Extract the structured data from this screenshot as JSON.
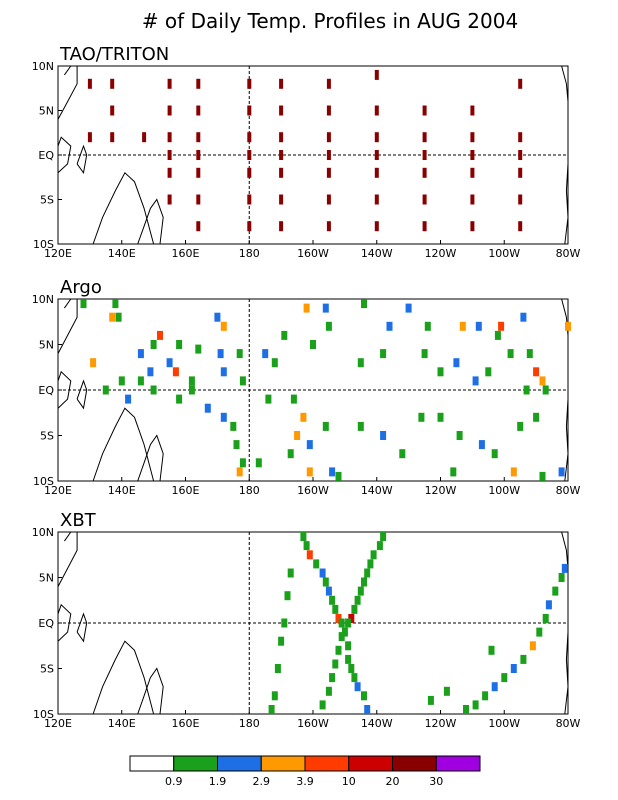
{
  "title": "# of Daily Temp. Profiles in AUG 2004",
  "colorbar": {
    "colors": [
      "#ffffff",
      "#1aa01a",
      "#1e6fe6",
      "#ff9900",
      "#ff3c00",
      "#cc0000",
      "#8a0000",
      "#a000e0"
    ],
    "labels": [
      "0.9",
      "1.9",
      "2.9",
      "3.9",
      "10",
      "20",
      "30"
    ]
  },
  "chart_data": [
    {
      "type": "scatter",
      "title": "TAO/TRITON",
      "x_ticks": [
        "120E",
        "140E",
        "160E",
        "180",
        "160W",
        "140W",
        "120W",
        "100W",
        "80W"
      ],
      "y_ticks": [
        "10N",
        "5N",
        "EQ",
        "5S",
        "10S"
      ],
      "xlim": [
        120,
        280
      ],
      "ylim": [
        -10,
        10
      ],
      "grid": "dashed lines at 180 and EQ",
      "points": [
        {
          "lon": 130,
          "lat": 8,
          "c": 6
        },
        {
          "lon": 137,
          "lat": 8,
          "c": 6
        },
        {
          "lon": 155,
          "lat": 8,
          "c": 6
        },
        {
          "lon": 164,
          "lat": 8,
          "c": 6
        },
        {
          "lon": 180,
          "lat": 8,
          "c": 6
        },
        {
          "lon": 190,
          "lat": 8,
          "c": 6
        },
        {
          "lon": 205,
          "lat": 8,
          "c": 6
        },
        {
          "lon": 220,
          "lat": 9,
          "c": 6
        },
        {
          "lon": 265,
          "lat": 8,
          "c": 6
        },
        {
          "lon": 137,
          "lat": 5,
          "c": 6
        },
        {
          "lon": 155,
          "lat": 5,
          "c": 6
        },
        {
          "lon": 164,
          "lat": 5,
          "c": 6
        },
        {
          "lon": 180,
          "lat": 5,
          "c": 6
        },
        {
          "lon": 190,
          "lat": 5,
          "c": 6
        },
        {
          "lon": 205,
          "lat": 5,
          "c": 6
        },
        {
          "lon": 220,
          "lat": 5,
          "c": 6
        },
        {
          "lon": 235,
          "lat": 5,
          "c": 6
        },
        {
          "lon": 250,
          "lat": 5,
          "c": 6
        },
        {
          "lon": 130,
          "lat": 2,
          "c": 6
        },
        {
          "lon": 137,
          "lat": 2,
          "c": 6
        },
        {
          "lon": 147,
          "lat": 2,
          "c": 6
        },
        {
          "lon": 155,
          "lat": 2,
          "c": 6
        },
        {
          "lon": 164,
          "lat": 2,
          "c": 6
        },
        {
          "lon": 180,
          "lat": 2,
          "c": 6
        },
        {
          "lon": 190,
          "lat": 2,
          "c": 6
        },
        {
          "lon": 205,
          "lat": 2,
          "c": 6
        },
        {
          "lon": 220,
          "lat": 2,
          "c": 6
        },
        {
          "lon": 235,
          "lat": 2,
          "c": 6
        },
        {
          "lon": 250,
          "lat": 2,
          "c": 6
        },
        {
          "lon": 265,
          "lat": 2,
          "c": 6
        },
        {
          "lon": 155,
          "lat": 0,
          "c": 6
        },
        {
          "lon": 164,
          "lat": 0,
          "c": 6
        },
        {
          "lon": 180,
          "lat": 0,
          "c": 6
        },
        {
          "lon": 190,
          "lat": 0,
          "c": 6
        },
        {
          "lon": 205,
          "lat": 0,
          "c": 6
        },
        {
          "lon": 220,
          "lat": 0,
          "c": 6
        },
        {
          "lon": 235,
          "lat": 0,
          "c": 6
        },
        {
          "lon": 250,
          "lat": 0,
          "c": 6
        },
        {
          "lon": 265,
          "lat": 0,
          "c": 6
        },
        {
          "lon": 155,
          "lat": -2,
          "c": 6
        },
        {
          "lon": 164,
          "lat": -2,
          "c": 6
        },
        {
          "lon": 180,
          "lat": -2,
          "c": 6
        },
        {
          "lon": 190,
          "lat": -2,
          "c": 6
        },
        {
          "lon": 205,
          "lat": -2,
          "c": 6
        },
        {
          "lon": 220,
          "lat": -2,
          "c": 6
        },
        {
          "lon": 235,
          "lat": -2,
          "c": 6
        },
        {
          "lon": 250,
          "lat": -2,
          "c": 6
        },
        {
          "lon": 265,
          "lat": -2,
          "c": 6
        },
        {
          "lon": 155,
          "lat": -5,
          "c": 6
        },
        {
          "lon": 164,
          "lat": -5,
          "c": 6
        },
        {
          "lon": 180,
          "lat": -5,
          "c": 6
        },
        {
          "lon": 190,
          "lat": -5,
          "c": 6
        },
        {
          "lon": 205,
          "lat": -5,
          "c": 6
        },
        {
          "lon": 220,
          "lat": -5,
          "c": 6
        },
        {
          "lon": 235,
          "lat": -5,
          "c": 6
        },
        {
          "lon": 250,
          "lat": -5,
          "c": 6
        },
        {
          "lon": 265,
          "lat": -5,
          "c": 6
        },
        {
          "lon": 164,
          "lat": -8,
          "c": 6
        },
        {
          "lon": 180,
          "lat": -8,
          "c": 6
        },
        {
          "lon": 190,
          "lat": -8,
          "c": 6
        },
        {
          "lon": 205,
          "lat": -8,
          "c": 6
        },
        {
          "lon": 220,
          "lat": -8,
          "c": 6
        },
        {
          "lon": 235,
          "lat": -8,
          "c": 6
        },
        {
          "lon": 250,
          "lat": -8,
          "c": 6
        },
        {
          "lon": 265,
          "lat": -8,
          "c": 6
        }
      ]
    },
    {
      "type": "scatter",
      "title": "Argo",
      "x_ticks": [
        "120E",
        "140E",
        "160E",
        "180",
        "160W",
        "140W",
        "120W",
        "100W",
        "80W"
      ],
      "y_ticks": [
        "10N",
        "5N",
        "EQ",
        "5S",
        "10S"
      ],
      "xlim": [
        120,
        280
      ],
      "ylim": [
        -10,
        10
      ],
      "grid": "dashed lines at 180 and EQ",
      "points": [
        {
          "lon": 128,
          "lat": 9.5,
          "c": 1
        },
        {
          "lon": 138,
          "lat": 9.5,
          "c": 1
        },
        {
          "lon": 137,
          "lat": 8,
          "c": 3
        },
        {
          "lon": 139,
          "lat": 8,
          "c": 1
        },
        {
          "lon": 152,
          "lat": 6,
          "c": 4
        },
        {
          "lon": 150,
          "lat": 5,
          "c": 1
        },
        {
          "lon": 146,
          "lat": 4,
          "c": 2
        },
        {
          "lon": 158,
          "lat": 5,
          "c": 1
        },
        {
          "lon": 164,
          "lat": 4.5,
          "c": 1
        },
        {
          "lon": 170,
          "lat": 8,
          "c": 2
        },
        {
          "lon": 172,
          "lat": 7,
          "c": 3
        },
        {
          "lon": 171,
          "lat": 4,
          "c": 2
        },
        {
          "lon": 177,
          "lat": 4,
          "c": 1
        },
        {
          "lon": 185,
          "lat": 4,
          "c": 2
        },
        {
          "lon": 191,
          "lat": 6,
          "c": 1
        },
        {
          "lon": 198,
          "lat": 9,
          "c": 3
        },
        {
          "lon": 204,
          "lat": 9,
          "c": 2
        },
        {
          "lon": 216,
          "lat": 9.5,
          "c": 1
        },
        {
          "lon": 230,
          "lat": 9,
          "c": 2
        },
        {
          "lon": 205,
          "lat": 7,
          "c": 1
        },
        {
          "lon": 224,
          "lat": 7,
          "c": 2
        },
        {
          "lon": 236,
          "lat": 7,
          "c": 1
        },
        {
          "lon": 247,
          "lat": 7,
          "c": 3
        },
        {
          "lon": 252,
          "lat": 7,
          "c": 2
        },
        {
          "lon": 259,
          "lat": 7,
          "c": 4
        },
        {
          "lon": 266,
          "lat": 8,
          "c": 2
        },
        {
          "lon": 258,
          "lat": 6,
          "c": 1
        },
        {
          "lon": 280,
          "lat": 7,
          "c": 3
        },
        {
          "lon": 131,
          "lat": 3,
          "c": 3
        },
        {
          "lon": 155,
          "lat": 3,
          "c": 2
        },
        {
          "lon": 157,
          "lat": 2,
          "c": 4
        },
        {
          "lon": 162,
          "lat": 1,
          "c": 1
        },
        {
          "lon": 149,
          "lat": 2,
          "c": 2
        },
        {
          "lon": 146,
          "lat": 1,
          "c": 1
        },
        {
          "lon": 140,
          "lat": 1,
          "c": 1
        },
        {
          "lon": 172,
          "lat": 2,
          "c": 2
        },
        {
          "lon": 178,
          "lat": 1,
          "c": 1
        },
        {
          "lon": 188,
          "lat": 3,
          "c": 1
        },
        {
          "lon": 200,
          "lat": 5,
          "c": 1
        },
        {
          "lon": 215,
          "lat": 3,
          "c": 1
        },
        {
          "lon": 222,
          "lat": 4,
          "c": 1
        },
        {
          "lon": 235,
          "lat": 4,
          "c": 1
        },
        {
          "lon": 240,
          "lat": 2,
          "c": 1
        },
        {
          "lon": 245,
          "lat": 3,
          "c": 2
        },
        {
          "lon": 251,
          "lat": 1,
          "c": 2
        },
        {
          "lon": 255,
          "lat": 2,
          "c": 1
        },
        {
          "lon": 262,
          "lat": 4,
          "c": 1
        },
        {
          "lon": 268,
          "lat": 4,
          "c": 1
        },
        {
          "lon": 270,
          "lat": 2,
          "c": 4
        },
        {
          "lon": 273,
          "lat": 0,
          "c": 1
        },
        {
          "lon": 272,
          "lat": 1,
          "c": 3
        },
        {
          "lon": 267,
          "lat": 0,
          "c": 1
        },
        {
          "lon": 135,
          "lat": 0,
          "c": 1
        },
        {
          "lon": 142,
          "lat": -1,
          "c": 2
        },
        {
          "lon": 150,
          "lat": 0,
          "c": 1
        },
        {
          "lon": 158,
          "lat": -1,
          "c": 1
        },
        {
          "lon": 162,
          "lat": 0,
          "c": 1
        },
        {
          "lon": 167,
          "lat": -2,
          "c": 2
        },
        {
          "lon": 172,
          "lat": -3,
          "c": 2
        },
        {
          "lon": 175,
          "lat": -4,
          "c": 1
        },
        {
          "lon": 186,
          "lat": -1,
          "c": 1
        },
        {
          "lon": 194,
          "lat": -1,
          "c": 1
        },
        {
          "lon": 197,
          "lat": -3,
          "c": 3
        },
        {
          "lon": 195,
          "lat": -5,
          "c": 3
        },
        {
          "lon": 199,
          "lat": -6,
          "c": 2
        },
        {
          "lon": 204,
          "lat": -4,
          "c": 1
        },
        {
          "lon": 215,
          "lat": -4,
          "c": 1
        },
        {
          "lon": 222,
          "lat": -5,
          "c": 2
        },
        {
          "lon": 234,
          "lat": -3,
          "c": 1
        },
        {
          "lon": 240,
          "lat": -3,
          "c": 1
        },
        {
          "lon": 246,
          "lat": -5,
          "c": 1
        },
        {
          "lon": 253,
          "lat": -6,
          "c": 2
        },
        {
          "lon": 257,
          "lat": -7,
          "c": 1
        },
        {
          "lon": 265,
          "lat": -4,
          "c": 1
        },
        {
          "lon": 270,
          "lat": -3,
          "c": 1
        },
        {
          "lon": 176,
          "lat": -6,
          "c": 1
        },
        {
          "lon": 178,
          "lat": -8,
          "c": 1
        },
        {
          "lon": 177,
          "lat": -9,
          "c": 3
        },
        {
          "lon": 183,
          "lat": -8,
          "c": 1
        },
        {
          "lon": 193,
          "lat": -7,
          "c": 1
        },
        {
          "lon": 199,
          "lat": -9,
          "c": 3
        },
        {
          "lon": 206,
          "lat": -9,
          "c": 2
        },
        {
          "lon": 208,
          "lat": -9.5,
          "c": 1
        },
        {
          "lon": 228,
          "lat": -7,
          "c": 1
        },
        {
          "lon": 244,
          "lat": -9,
          "c": 1
        },
        {
          "lon": 263,
          "lat": -9,
          "c": 3
        },
        {
          "lon": 272,
          "lat": -9.5,
          "c": 1
        },
        {
          "lon": 278,
          "lat": -9,
          "c": 2
        }
      ]
    },
    {
      "type": "scatter",
      "title": "XBT",
      "x_ticks": [
        "120E",
        "140E",
        "160E",
        "180",
        "160W",
        "140W",
        "120W",
        "100W",
        "80W"
      ],
      "y_ticks": [
        "10N",
        "5N",
        "EQ",
        "5S",
        "10S"
      ],
      "xlim": [
        120,
        280
      ],
      "ylim": [
        -10,
        10
      ],
      "grid": "dashed lines at 180 and EQ",
      "points": [
        {
          "lon": 197,
          "lat": 9.5,
          "c": 1
        },
        {
          "lon": 198,
          "lat": 8.5,
          "c": 1
        },
        {
          "lon": 199,
          "lat": 7.5,
          "c": 4
        },
        {
          "lon": 201,
          "lat": 6.5,
          "c": 1
        },
        {
          "lon": 203,
          "lat": 5.5,
          "c": 2
        },
        {
          "lon": 204,
          "lat": 4.5,
          "c": 1
        },
        {
          "lon": 205,
          "lat": 3.5,
          "c": 2
        },
        {
          "lon": 206,
          "lat": 2.5,
          "c": 1
        },
        {
          "lon": 207,
          "lat": 1.5,
          "c": 1
        },
        {
          "lon": 208,
          "lat": 0.5,
          "c": 4
        },
        {
          "lon": 209,
          "lat": 0,
          "c": 1
        },
        {
          "lon": 210,
          "lat": -1,
          "c": 1
        },
        {
          "lon": 211,
          "lat": -2.5,
          "c": 1
        },
        {
          "lon": 211,
          "lat": -4,
          "c": 1
        },
        {
          "lon": 212,
          "lat": -5,
          "c": 1
        },
        {
          "lon": 213,
          "lat": -6,
          "c": 1
        },
        {
          "lon": 214,
          "lat": -7,
          "c": 2
        },
        {
          "lon": 216,
          "lat": -8,
          "c": 1
        },
        {
          "lon": 217,
          "lat": -9.5,
          "c": 2
        },
        {
          "lon": 222,
          "lat": 9.5,
          "c": 1
        },
        {
          "lon": 221,
          "lat": 8.5,
          "c": 1
        },
        {
          "lon": 219,
          "lat": 7.5,
          "c": 1
        },
        {
          "lon": 218,
          "lat": 6.5,
          "c": 1
        },
        {
          "lon": 217,
          "lat": 5.5,
          "c": 1
        },
        {
          "lon": 216,
          "lat": 4.5,
          "c": 1
        },
        {
          "lon": 215,
          "lat": 3.5,
          "c": 1
        },
        {
          "lon": 214,
          "lat": 2.5,
          "c": 1
        },
        {
          "lon": 213,
          "lat": 1.5,
          "c": 1
        },
        {
          "lon": 212,
          "lat": 0.5,
          "c": 5
        },
        {
          "lon": 211,
          "lat": 0,
          "c": 1
        },
        {
          "lon": 209,
          "lat": -1.5,
          "c": 1
        },
        {
          "lon": 208,
          "lat": -3,
          "c": 1
        },
        {
          "lon": 207,
          "lat": -4.5,
          "c": 1
        },
        {
          "lon": 206,
          "lat": -6,
          "c": 1
        },
        {
          "lon": 205,
          "lat": -7.5,
          "c": 1
        },
        {
          "lon": 203,
          "lat": -9,
          "c": 1
        },
        {
          "lon": 193,
          "lat": 5.5,
          "c": 1
        },
        {
          "lon": 192,
          "lat": 3,
          "c": 1
        },
        {
          "lon": 191,
          "lat": 0,
          "c": 1
        },
        {
          "lon": 190,
          "lat": -2,
          "c": 1
        },
        {
          "lon": 189,
          "lat": -5,
          "c": 1
        },
        {
          "lon": 188,
          "lat": -8,
          "c": 1
        },
        {
          "lon": 187,
          "lat": -9.5,
          "c": 1
        },
        {
          "lon": 279,
          "lat": 6,
          "c": 2
        },
        {
          "lon": 278,
          "lat": 5,
          "c": 1
        },
        {
          "lon": 276,
          "lat": 3.5,
          "c": 1
        },
        {
          "lon": 274,
          "lat": 2,
          "c": 2
        },
        {
          "lon": 273,
          "lat": 0.5,
          "c": 1
        },
        {
          "lon": 271,
          "lat": -1,
          "c": 1
        },
        {
          "lon": 269,
          "lat": -2.5,
          "c": 3
        },
        {
          "lon": 266,
          "lat": -4,
          "c": 1
        },
        {
          "lon": 263,
          "lat": -5,
          "c": 2
        },
        {
          "lon": 260,
          "lat": -6,
          "c": 1
        },
        {
          "lon": 257,
          "lat": -7,
          "c": 2
        },
        {
          "lon": 254,
          "lat": -8,
          "c": 1
        },
        {
          "lon": 251,
          "lat": -9,
          "c": 1
        },
        {
          "lon": 248,
          "lat": -9.5,
          "c": 1
        },
        {
          "lon": 242,
          "lat": -7.5,
          "c": 1
        },
        {
          "lon": 237,
          "lat": -8.5,
          "c": 1
        },
        {
          "lon": 256,
          "lat": -3,
          "c": 1
        }
      ]
    }
  ]
}
